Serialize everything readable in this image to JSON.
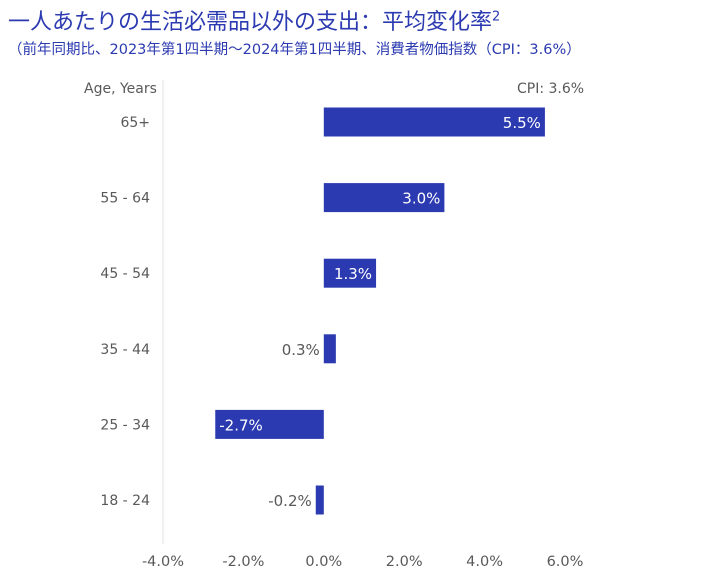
{
  "chart_data": {
    "type": "bar",
    "orientation": "horizontal",
    "title": "一人あたりの生活必需品以外の支出：平均変化率",
    "title_superscript": "2",
    "subtitle": "（前年同期比、2023年第1四半期～2024年第1四半期、消費者物価指数（CPI：3.6%）",
    "ylabel": "Age, Years",
    "reference_label": "CPI: 3.6%",
    "categories": [
      "65+",
      "55 - 64",
      "45 - 54",
      "35 - 44",
      "25 - 34",
      "18 - 24"
    ],
    "values": [
      5.5,
      3.0,
      1.3,
      0.3,
      -2.7,
      -0.2
    ],
    "value_labels": [
      "5.5%",
      "3.0%",
      "1.3%",
      "0.3%",
      "-2.7%",
      "-0.2%"
    ],
    "xlim": [
      -4.0,
      6.0
    ],
    "xticks": [
      -4.0,
      -2.0,
      0.0,
      2.0,
      4.0,
      6.0
    ],
    "xtick_labels": [
      "-4.0%",
      "-2.0%",
      "0.0%",
      "2.0%",
      "4.0%",
      "6.0%"
    ],
    "grid": false,
    "colors": {
      "bar": "#2b3ab0",
      "title": "#2b3ab0",
      "text": "#595959"
    }
  }
}
